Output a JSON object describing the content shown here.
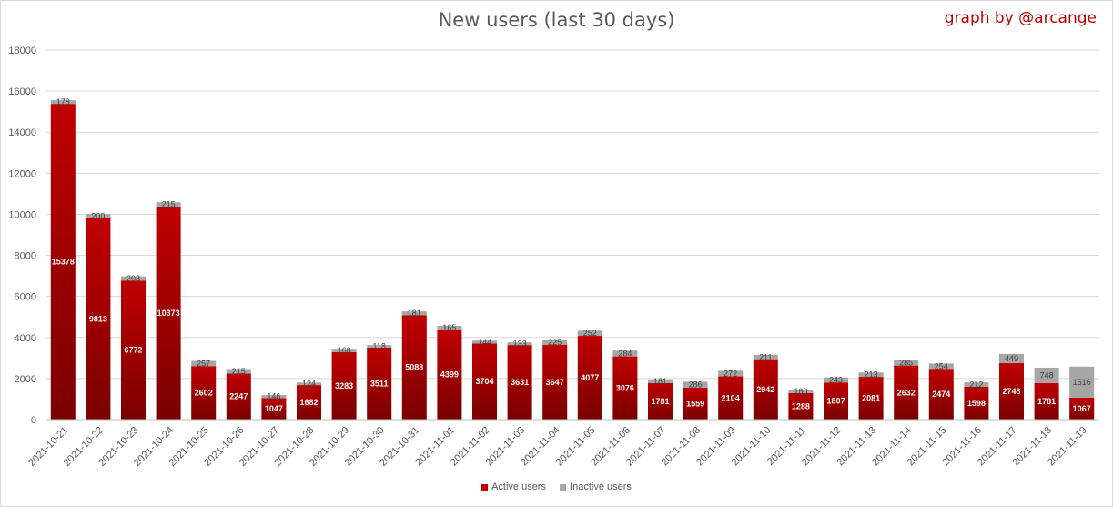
{
  "title": "New users (last 30 days)",
  "credit": "graph by @arcange",
  "colors": {
    "active": "#c00000",
    "active_dark": "#7a0000",
    "inactive": "#a6a6a6",
    "grid": "#d9d9d9"
  },
  "chart_data": {
    "type": "bar",
    "stacked": true,
    "title": "New users (last 30 days)",
    "xlabel": "",
    "ylabel": "",
    "ylim": [
      0,
      18000
    ],
    "yticks": [
      0,
      2000,
      4000,
      6000,
      8000,
      10000,
      12000,
      14000,
      16000,
      18000
    ],
    "grid": true,
    "legend_position": "bottom",
    "categories": [
      "2021-10-21",
      "2021-10-22",
      "2021-10-23",
      "2021-10-24",
      "2021-10-25",
      "2021-10-26",
      "2021-10-27",
      "2021-10-28",
      "2021-10-29",
      "2021-10-30",
      "2021-10-31",
      "2021-11-01",
      "2021-11-02",
      "2021-11-03",
      "2021-11-04",
      "2021-11-05",
      "2021-11-06",
      "2021-11-07",
      "2021-11-08",
      "2021-11-09",
      "2021-11-10",
      "2021-11-11",
      "2021-11-12",
      "2021-11-13",
      "2021-11-14",
      "2021-11-15",
      "2021-11-16",
      "2021-11-17",
      "2021-11-18",
      "2021-11-19"
    ],
    "series": [
      {
        "name": "Active users",
        "values": [
          15378,
          9813,
          6772,
          10373,
          2602,
          2247,
          1047,
          1682,
          3283,
          3511,
          5088,
          4399,
          3704,
          3631,
          3647,
          4077,
          3076,
          1781,
          1559,
          2104,
          2942,
          1288,
          1807,
          2081,
          2632,
          2474,
          1598,
          2748,
          1781,
          1067
        ]
      },
      {
        "name": "Inactive users",
        "values": [
          178,
          200,
          203,
          215,
          257,
          215,
          146,
          124,
          168,
          118,
          181,
          165,
          144,
          133,
          225,
          252,
          284,
          181,
          286,
          272,
          211,
          160,
          243,
          213,
          285,
          254,
          212,
          449,
          748,
          1516
        ]
      }
    ]
  }
}
